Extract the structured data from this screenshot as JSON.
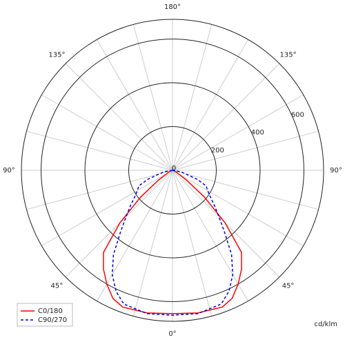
{
  "chart_data": {
    "type": "polar",
    "unit": "cd/klm",
    "rlim": [
      0,
      690
    ],
    "rticks": [
      0,
      200,
      400,
      600
    ],
    "angle_ticks": [
      {
        "value": 0,
        "label": "0°"
      },
      {
        "value": 45,
        "label": "45°"
      },
      {
        "value": 90,
        "label": "90°"
      },
      {
        "value": 135,
        "label": "135°"
      },
      {
        "value": 180,
        "label": "180°"
      },
      {
        "value": -45,
        "label": "45°"
      },
      {
        "value": -90,
        "label": "90°"
      },
      {
        "value": -135,
        "label": "135°"
      }
    ],
    "angle_grid": [
      -165,
      -150,
      -135,
      -120,
      -105,
      -90,
      -75,
      -60,
      -45,
      -30,
      -15,
      0,
      15,
      30,
      45,
      60,
      75,
      90,
      105,
      120,
      135,
      150,
      165,
      180
    ],
    "angles": [
      -90,
      -80,
      -70,
      -65,
      -60,
      -55,
      -50,
      -45,
      -40,
      -35,
      -30,
      -25,
      -20,
      -10,
      0,
      10,
      20,
      25,
      30,
      35,
      40,
      45,
      50,
      55,
      60,
      65,
      70,
      80,
      90
    ],
    "series": [
      {
        "name": "C0/180",
        "color": "#ff0000",
        "dash": false,
        "values": [
          0,
          5,
          10,
          20,
          30,
          80,
          190,
          340,
          490,
          550,
          600,
          645,
          665,
          662,
          655,
          662,
          665,
          645,
          600,
          550,
          490,
          340,
          190,
          80,
          30,
          20,
          10,
          5,
          0
        ]
      },
      {
        "name": "C90/270",
        "color": "#0000dd",
        "dash": true,
        "values": [
          0,
          40,
          120,
          170,
          185,
          210,
          250,
          300,
          370,
          470,
          550,
          610,
          650,
          665,
          662,
          665,
          650,
          610,
          550,
          470,
          370,
          300,
          250,
          210,
          185,
          170,
          120,
          40,
          0
        ]
      }
    ],
    "legend": "lower left"
  }
}
